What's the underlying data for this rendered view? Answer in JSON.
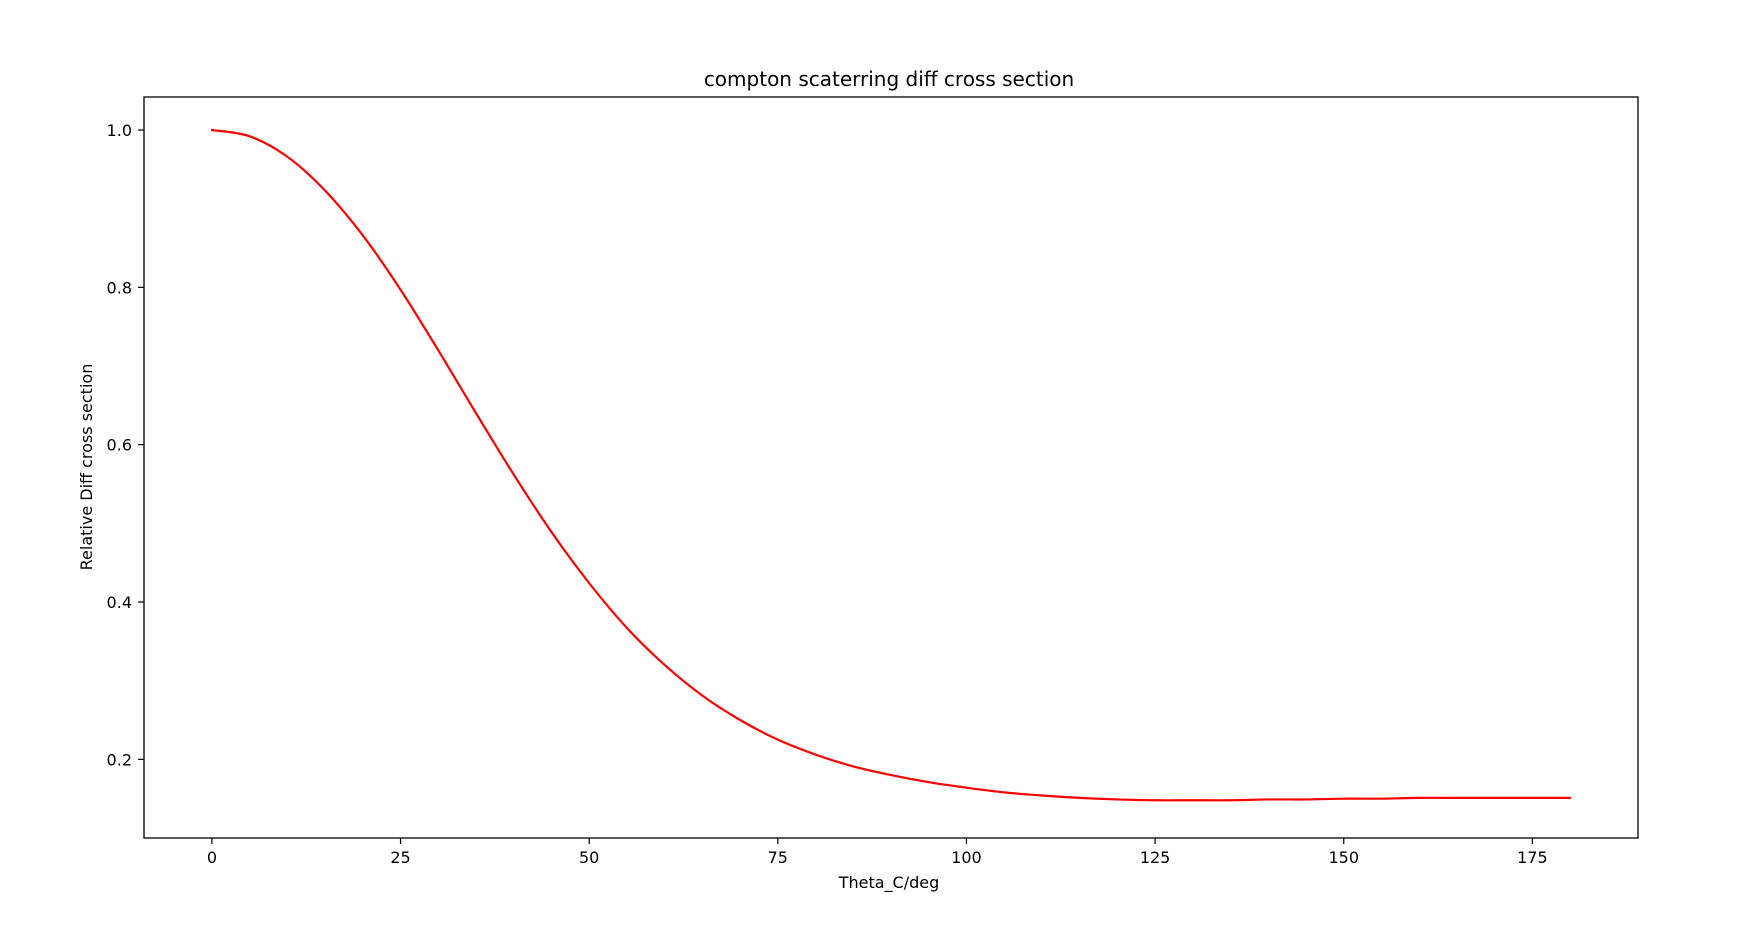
{
  "chart_data": {
    "type": "line",
    "title": "compton scaterring diff cross section",
    "xlabel": "Theta_C/deg",
    "ylabel": "Relative Diff cross section",
    "xlim": [
      -9,
      189
    ],
    "ylim": [
      0.1,
      1.042
    ],
    "xticks": [
      0,
      25,
      50,
      75,
      100,
      125,
      150,
      175
    ],
    "yticks": [
      0.2,
      0.4,
      0.6,
      0.8,
      1.0
    ],
    "xtick_labels": [
      "0",
      "25",
      "50",
      "75",
      "100",
      "125",
      "150",
      "175"
    ],
    "ytick_labels": [
      "0.2",
      "0.4",
      "0.6",
      "0.8",
      "1.0"
    ],
    "grid": false,
    "legend": "none",
    "series": [
      {
        "color": "#ff0000",
        "x": [
          0,
          5,
          10,
          15,
          20,
          25,
          30,
          35,
          40,
          45,
          50,
          55,
          60,
          65,
          70,
          75,
          80,
          85,
          90,
          95,
          100,
          105,
          110,
          115,
          120,
          125,
          130,
          135,
          140,
          145,
          150,
          155,
          160,
          165,
          170,
          175,
          180
        ],
        "y": [
          1.0,
          0.992,
          0.966,
          0.923,
          0.866,
          0.797,
          0.72,
          0.64,
          0.562,
          0.489,
          0.424,
          0.367,
          0.32,
          0.281,
          0.25,
          0.225,
          0.206,
          0.191,
          0.18,
          0.171,
          0.164,
          0.158,
          0.154,
          0.151,
          0.149,
          0.148,
          0.148,
          0.148,
          0.149,
          0.149,
          0.15,
          0.15,
          0.151,
          0.151,
          0.151,
          0.151,
          0.151
        ]
      }
    ]
  }
}
